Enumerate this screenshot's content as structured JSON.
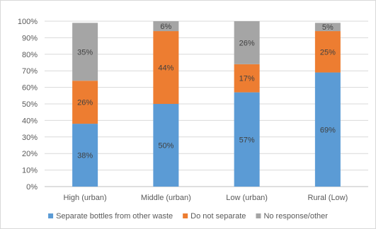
{
  "chart_data": {
    "type": "bar",
    "stacked": true,
    "percent_stacked": true,
    "categories": [
      "High (urban)",
      "Middle (urban)",
      "Low (urban)",
      "Rural (Low)"
    ],
    "series": [
      {
        "name": "Separate bottles from other waste",
        "color": "#5b9bd5",
        "values": [
          38,
          50,
          57,
          69
        ],
        "labels": [
          "38%",
          "50%",
          "57%",
          "69%"
        ]
      },
      {
        "name": "Do not separate",
        "color": "#ed7d31",
        "values": [
          26,
          44,
          17,
          25
        ],
        "labels": [
          "26%",
          "44%",
          "17%",
          "25%"
        ]
      },
      {
        "name": "No response/other",
        "color": "#a5a5a5",
        "values": [
          35,
          6,
          26,
          5
        ],
        "labels": [
          "35%",
          "6%",
          "26%",
          "5%"
        ]
      }
    ],
    "ylim": [
      0,
      100
    ],
    "y_ticks": [
      "0%",
      "10%",
      "20%",
      "30%",
      "40%",
      "50%",
      "60%",
      "70%",
      "80%",
      "90%",
      "100%"
    ],
    "grid": true,
    "legend_position": "bottom"
  }
}
